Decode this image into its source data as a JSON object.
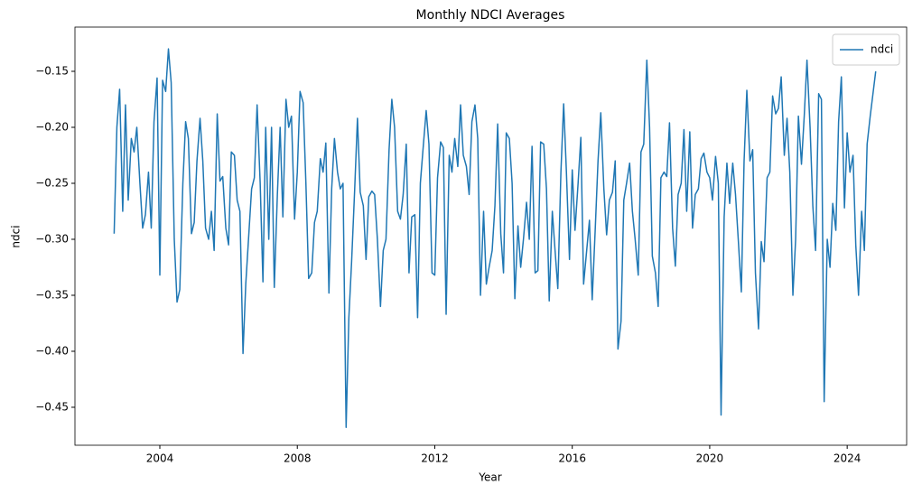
{
  "chart_data": {
    "type": "line",
    "title": "Monthly NDCI Averages",
    "x_label": "Year",
    "y_label": "ndci",
    "x": [
      2002.67,
      2002.75,
      2002.83,
      2002.92,
      2003.0,
      2003.08,
      2003.17,
      2003.25,
      2003.33,
      2003.42,
      2003.5,
      2003.58,
      2003.67,
      2003.75,
      2003.83,
      2003.92,
      2004.0,
      2004.08,
      2004.17,
      2004.25,
      2004.33,
      2004.42,
      2004.5,
      2004.58,
      2004.67,
      2004.75,
      2004.83,
      2004.92,
      2005.0,
      2005.08,
      2005.17,
      2005.25,
      2005.33,
      2005.42,
      2005.5,
      2005.58,
      2005.67,
      2005.75,
      2005.83,
      2005.92,
      2006.0,
      2006.08,
      2006.17,
      2006.25,
      2006.33,
      2006.42,
      2006.5,
      2006.58,
      2006.67,
      2006.75,
      2006.83,
      2006.92,
      2007.0,
      2007.08,
      2007.17,
      2007.25,
      2007.33,
      2007.42,
      2007.5,
      2007.58,
      2007.67,
      2007.75,
      2007.83,
      2007.92,
      2008.0,
      2008.08,
      2008.17,
      2008.25,
      2008.33,
      2008.42,
      2008.5,
      2008.58,
      2008.67,
      2008.75,
      2008.83,
      2008.92,
      2009.0,
      2009.08,
      2009.17,
      2009.25,
      2009.33,
      2009.42,
      2009.5,
      2009.58,
      2009.67,
      2009.75,
      2009.83,
      2009.92,
      2010.0,
      2010.08,
      2010.17,
      2010.25,
      2010.33,
      2010.42,
      2010.5,
      2010.58,
      2010.67,
      2010.75,
      2010.83,
      2010.92,
      2011.0,
      2011.08,
      2011.17,
      2011.25,
      2011.33,
      2011.42,
      2011.5,
      2011.58,
      2011.67,
      2011.75,
      2011.83,
      2011.92,
      2012.0,
      2012.08,
      2012.17,
      2012.25,
      2012.33,
      2012.42,
      2012.5,
      2012.58,
      2012.67,
      2012.75,
      2012.83,
      2012.92,
      2013.0,
      2013.08,
      2013.17,
      2013.25,
      2013.33,
      2013.42,
      2013.5,
      2013.58,
      2013.67,
      2013.75,
      2013.83,
      2013.92,
      2014.0,
      2014.08,
      2014.17,
      2014.25,
      2014.33,
      2014.42,
      2014.5,
      2014.58,
      2014.67,
      2014.75,
      2014.83,
      2014.92,
      2015.0,
      2015.08,
      2015.17,
      2015.25,
      2015.33,
      2015.42,
      2015.5,
      2015.58,
      2015.67,
      2015.75,
      2015.83,
      2015.92,
      2016.0,
      2016.08,
      2016.17,
      2016.25,
      2016.33,
      2016.42,
      2016.5,
      2016.58,
      2016.67,
      2016.75,
      2016.83,
      2016.92,
      2017.0,
      2017.08,
      2017.17,
      2017.25,
      2017.33,
      2017.42,
      2017.5,
      2017.58,
      2017.67,
      2017.75,
      2017.83,
      2017.92,
      2018.0,
      2018.08,
      2018.17,
      2018.25,
      2018.33,
      2018.42,
      2018.5,
      2018.58,
      2018.67,
      2018.75,
      2018.83,
      2018.92,
      2019.0,
      2019.08,
      2019.17,
      2019.25,
      2019.33,
      2019.42,
      2019.5,
      2019.58,
      2019.67,
      2019.75,
      2019.83,
      2019.92,
      2020.0,
      2020.08,
      2020.17,
      2020.25,
      2020.33,
      2020.42,
      2020.5,
      2020.58,
      2020.67,
      2020.75,
      2020.83,
      2020.92,
      2021.0,
      2021.08,
      2021.17,
      2021.25,
      2021.33,
      2021.42,
      2021.5,
      2021.58,
      2021.67,
      2021.75,
      2021.83,
      2021.92,
      2022.0,
      2022.08,
      2022.17,
      2022.25,
      2022.33,
      2022.42,
      2022.5,
      2022.58,
      2022.67,
      2022.75,
      2022.83,
      2022.92,
      2023.0,
      2023.08,
      2023.17,
      2023.25,
      2023.33,
      2023.42,
      2023.5,
      2023.58,
      2023.67,
      2023.75,
      2023.83,
      2023.92,
      2024.0,
      2024.08,
      2024.17,
      2024.25,
      2024.33,
      2024.42,
      2024.5,
      2024.58,
      2024.67,
      2024.75,
      2024.83
    ],
    "series": [
      {
        "name": "ndci",
        "color": "#1f77b4",
        "values": [
          -0.295,
          -0.2,
          -0.166,
          -0.275,
          -0.18,
          -0.265,
          -0.21,
          -0.222,
          -0.2,
          -0.25,
          -0.29,
          -0.278,
          -0.24,
          -0.29,
          -0.195,
          -0.156,
          -0.332,
          -0.158,
          -0.168,
          -0.13,
          -0.16,
          -0.3,
          -0.356,
          -0.345,
          -0.25,
          -0.195,
          -0.21,
          -0.295,
          -0.285,
          -0.23,
          -0.192,
          -0.23,
          -0.29,
          -0.3,
          -0.275,
          -0.31,
          -0.188,
          -0.248,
          -0.244,
          -0.29,
          -0.305,
          -0.222,
          -0.225,
          -0.265,
          -0.275,
          -0.402,
          -0.34,
          -0.3,
          -0.255,
          -0.245,
          -0.18,
          -0.25,
          -0.338,
          -0.2,
          -0.3,
          -0.2,
          -0.343,
          -0.26,
          -0.2,
          -0.28,
          -0.175,
          -0.2,
          -0.19,
          -0.282,
          -0.24,
          -0.168,
          -0.178,
          -0.25,
          -0.335,
          -0.33,
          -0.285,
          -0.275,
          -0.228,
          -0.24,
          -0.214,
          -0.348,
          -0.255,
          -0.21,
          -0.24,
          -0.255,
          -0.25,
          -0.468,
          -0.37,
          -0.32,
          -0.255,
          -0.192,
          -0.258,
          -0.27,
          -0.318,
          -0.262,
          -0.257,
          -0.26,
          -0.3,
          -0.36,
          -0.31,
          -0.3,
          -0.22,
          -0.175,
          -0.2,
          -0.275,
          -0.282,
          -0.26,
          -0.215,
          -0.33,
          -0.28,
          -0.278,
          -0.37,
          -0.25,
          -0.215,
          -0.185,
          -0.215,
          -0.33,
          -0.332,
          -0.245,
          -0.213,
          -0.218,
          -0.367,
          -0.225,
          -0.24,
          -0.21,
          -0.235,
          -0.18,
          -0.225,
          -0.235,
          -0.26,
          -0.195,
          -0.18,
          -0.21,
          -0.35,
          -0.275,
          -0.34,
          -0.325,
          -0.31,
          -0.27,
          -0.197,
          -0.295,
          -0.33,
          -0.205,
          -0.21,
          -0.25,
          -0.353,
          -0.288,
          -0.325,
          -0.3,
          -0.267,
          -0.3,
          -0.217,
          -0.33,
          -0.328,
          -0.213,
          -0.215,
          -0.255,
          -0.355,
          -0.275,
          -0.31,
          -0.344,
          -0.24,
          -0.179,
          -0.24,
          -0.318,
          -0.238,
          -0.292,
          -0.25,
          -0.209,
          -0.34,
          -0.31,
          -0.283,
          -0.354,
          -0.29,
          -0.23,
          -0.187,
          -0.255,
          -0.296,
          -0.265,
          -0.258,
          -0.23,
          -0.398,
          -0.373,
          -0.265,
          -0.25,
          -0.232,
          -0.275,
          -0.3,
          -0.332,
          -0.222,
          -0.215,
          -0.14,
          -0.2,
          -0.315,
          -0.33,
          -0.36,
          -0.245,
          -0.24,
          -0.244,
          -0.196,
          -0.29,
          -0.324,
          -0.26,
          -0.25,
          -0.202,
          -0.275,
          -0.204,
          -0.29,
          -0.26,
          -0.255,
          -0.228,
          -0.223,
          -0.24,
          -0.245,
          -0.265,
          -0.226,
          -0.25,
          -0.457,
          -0.28,
          -0.232,
          -0.268,
          -0.232,
          -0.26,
          -0.3,
          -0.347,
          -0.23,
          -0.167,
          -0.23,
          -0.22,
          -0.33,
          -0.38,
          -0.302,
          -0.32,
          -0.245,
          -0.24,
          -0.172,
          -0.188,
          -0.183,
          -0.155,
          -0.225,
          -0.192,
          -0.24,
          -0.35,
          -0.3,
          -0.19,
          -0.233,
          -0.19,
          -0.14,
          -0.2,
          -0.27,
          -0.31,
          -0.17,
          -0.175,
          -0.445,
          -0.3,
          -0.325,
          -0.268,
          -0.292,
          -0.195,
          -0.155,
          -0.272,
          -0.205,
          -0.24,
          -0.225,
          -0.305,
          -0.35,
          -0.275,
          -0.31,
          -0.215,
          -0.19,
          -0.17,
          -0.15
        ]
      }
    ],
    "xlim": [
      2001.53,
      2025.73
    ],
    "xticks": [
      2004,
      2008,
      2012,
      2016,
      2020,
      2024
    ],
    "ylim": [
      -0.4839,
      -0.1105
    ],
    "yticks": [
      {
        "value": -0.45,
        "label": "−0.45"
      },
      {
        "value": -0.4,
        "label": "−0.40"
      },
      {
        "value": -0.35,
        "label": "−0.35"
      },
      {
        "value": -0.3,
        "label": "−0.30"
      },
      {
        "value": -0.25,
        "label": "−0.25"
      },
      {
        "value": -0.2,
        "label": "−0.20"
      },
      {
        "value": -0.15,
        "label": "−0.15"
      }
    ],
    "grid": false,
    "legend": "upper right"
  }
}
